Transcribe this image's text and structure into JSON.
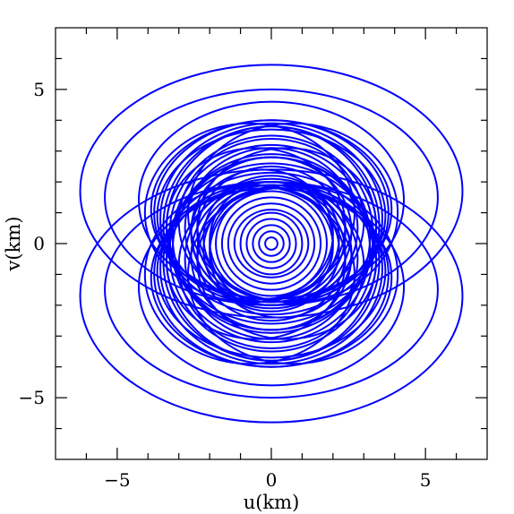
{
  "chart_data": {
    "type": "line",
    "title": "",
    "xlabel": "u(km)",
    "ylabel": "v(km)",
    "xlim": [
      -7,
      7
    ],
    "ylim": [
      -7,
      7
    ],
    "xticks": [
      "−5",
      "0",
      "5"
    ],
    "xtick_values": [
      -5,
      0,
      5
    ],
    "yticks": [
      "−5",
      "0",
      "5"
    ],
    "ytick_values": [
      -5,
      0,
      5
    ],
    "grid": false,
    "line_color": "#0000ff",
    "series": [
      {
        "description": "uv-coverage ellipse tracks",
        "tracks": [
          {
            "cx": 0,
            "cy": 1.7,
            "a": 6.2,
            "b": 4.1
          },
          {
            "cx": 0,
            "cy": -1.7,
            "a": 6.2,
            "b": 4.1
          },
          {
            "cx": 0,
            "cy": 1.5,
            "a": 5.4,
            "b": 3.5
          },
          {
            "cx": 0,
            "cy": -1.5,
            "a": 5.4,
            "b": 3.5
          },
          {
            "cx": 0,
            "cy": 1.4,
            "a": 4.3,
            "b": 3.2
          },
          {
            "cx": 0,
            "cy": -1.4,
            "a": 4.3,
            "b": 3.2
          },
          {
            "cx": 0,
            "cy": 1.1,
            "a": 3.9,
            "b": 2.9
          },
          {
            "cx": 0,
            "cy": -1.1,
            "a": 3.9,
            "b": 2.9
          },
          {
            "cx": 0,
            "cy": 1.0,
            "a": 3.8,
            "b": 3.0
          },
          {
            "cx": 0,
            "cy": -1.0,
            "a": 3.8,
            "b": 3.0
          },
          {
            "cx": 0,
            "cy": 0.9,
            "a": 3.7,
            "b": 2.8
          },
          {
            "cx": 0,
            "cy": -0.9,
            "a": 3.7,
            "b": 2.8
          },
          {
            "cx": 0,
            "cy": 0.8,
            "a": 3.6,
            "b": 3.1
          },
          {
            "cx": 0,
            "cy": -0.8,
            "a": 3.6,
            "b": 3.1
          },
          {
            "cx": 0,
            "cy": 0.6,
            "a": 3.5,
            "b": 3.2
          },
          {
            "cx": 0,
            "cy": -0.6,
            "a": 3.5,
            "b": 3.2
          },
          {
            "cx": 0,
            "cy": 0.5,
            "a": 3.4,
            "b": 3.3
          },
          {
            "cx": 0,
            "cy": -0.5,
            "a": 3.4,
            "b": 3.3
          },
          {
            "cx": 0,
            "cy": 0.3,
            "a": 3.3,
            "b": 3.2
          },
          {
            "cx": 0,
            "cy": -0.3,
            "a": 3.3,
            "b": 3.2
          },
          {
            "cx": 0,
            "cy": 0.2,
            "a": 3.2,
            "b": 3.0
          },
          {
            "cx": 0,
            "cy": -0.2,
            "a": 3.2,
            "b": 3.0
          },
          {
            "cx": 0,
            "cy": 0.7,
            "a": 3.0,
            "b": 2.7
          },
          {
            "cx": 0,
            "cy": -0.7,
            "a": 3.0,
            "b": 2.7
          },
          {
            "cx": 0,
            "cy": 0.5,
            "a": 2.8,
            "b": 2.6
          },
          {
            "cx": 0,
            "cy": -0.5,
            "a": 2.8,
            "b": 2.6
          },
          {
            "cx": 0,
            "cy": 0.4,
            "a": 2.6,
            "b": 2.4
          },
          {
            "cx": 0,
            "cy": -0.4,
            "a": 2.6,
            "b": 2.4
          },
          {
            "cx": 0,
            "cy": 0.3,
            "a": 2.4,
            "b": 2.2
          },
          {
            "cx": 0,
            "cy": -0.3,
            "a": 2.4,
            "b": 2.2
          },
          {
            "cx": 0,
            "cy": 0.2,
            "a": 2.2,
            "b": 2.0
          },
          {
            "cx": 0,
            "cy": -0.2,
            "a": 2.2,
            "b": 2.0
          },
          {
            "cx": 0,
            "cy": 0.1,
            "a": 2.0,
            "b": 1.9
          },
          {
            "cx": 0,
            "cy": -0.1,
            "a": 2.0,
            "b": 1.9
          },
          {
            "cx": 0,
            "cy": 0.0,
            "a": 1.8,
            "b": 1.7
          },
          {
            "cx": 0,
            "cy": 0.0,
            "a": 1.6,
            "b": 1.5
          },
          {
            "cx": 0,
            "cy": 0.0,
            "a": 1.4,
            "b": 1.3
          },
          {
            "cx": 0,
            "cy": 0.0,
            "a": 1.2,
            "b": 1.1
          },
          {
            "cx": 0,
            "cy": 0.0,
            "a": 1.0,
            "b": 1.0
          },
          {
            "cx": 0,
            "cy": 0.0,
            "a": 0.8,
            "b": 0.8
          },
          {
            "cx": 0,
            "cy": 0.0,
            "a": 0.6,
            "b": 0.6
          },
          {
            "cx": 0,
            "cy": 0.0,
            "a": 0.4,
            "b": 0.4
          },
          {
            "cx": 0,
            "cy": 0.0,
            "a": 0.2,
            "b": 0.2
          },
          {
            "cx": -0.7,
            "cy": 1.0,
            "a": 3.4,
            "b": 2.9
          },
          {
            "cx": 0.7,
            "cy": 1.0,
            "a": 3.4,
            "b": 2.9
          },
          {
            "cx": -0.7,
            "cy": -1.0,
            "a": 3.4,
            "b": 2.9
          },
          {
            "cx": 0.7,
            "cy": -1.0,
            "a": 3.4,
            "b": 2.9
          },
          {
            "cx": -0.5,
            "cy": 0.6,
            "a": 2.9,
            "b": 2.5
          },
          {
            "cx": 0.5,
            "cy": 0.6,
            "a": 2.9,
            "b": 2.5
          },
          {
            "cx": -0.5,
            "cy": -0.6,
            "a": 2.9,
            "b": 2.5
          },
          {
            "cx": 0.5,
            "cy": -0.6,
            "a": 2.9,
            "b": 2.5
          },
          {
            "cx": -0.3,
            "cy": 0.3,
            "a": 2.3,
            "b": 2.1
          },
          {
            "cx": 0.3,
            "cy": -0.3,
            "a": 2.3,
            "b": 2.1
          }
        ]
      }
    ]
  }
}
